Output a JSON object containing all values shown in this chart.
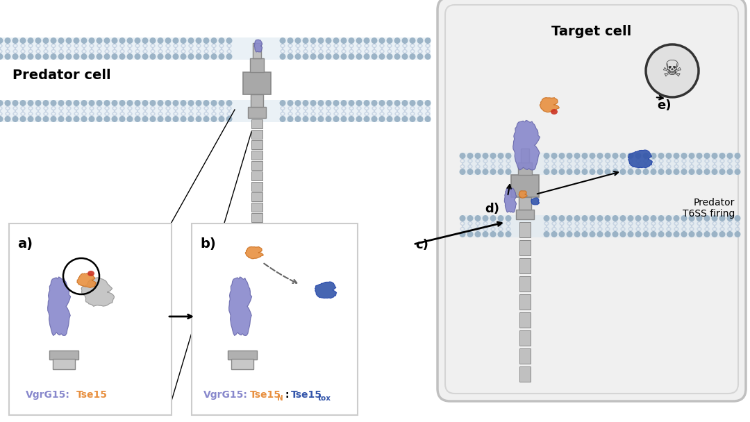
{
  "bg_color": "#ffffff",
  "membrane_color": "#b8c8dc",
  "membrane_head_color": "#8faabf",
  "purple_color": "#8888cc",
  "orange_color": "#e89040",
  "blue_color": "#3355aa",
  "red_accent": "#cc3322",
  "skull_color": "#333333",
  "label_a": "a)",
  "label_b": "b)",
  "label_c": "c)",
  "label_d": "d)",
  "label_e": "e)",
  "predator_text": "Predator cell",
  "target_text": "Target cell",
  "t6ss_firing": "Predator\nT6SS firing",
  "vgrg_label": "VgrG15:",
  "tse15_label": "Tse15",
  "tse15n_label": "Tse15",
  "tse15n_sub": "N",
  "tse15tox_label": "Tse15",
  "tse15tox_sub": "tox"
}
